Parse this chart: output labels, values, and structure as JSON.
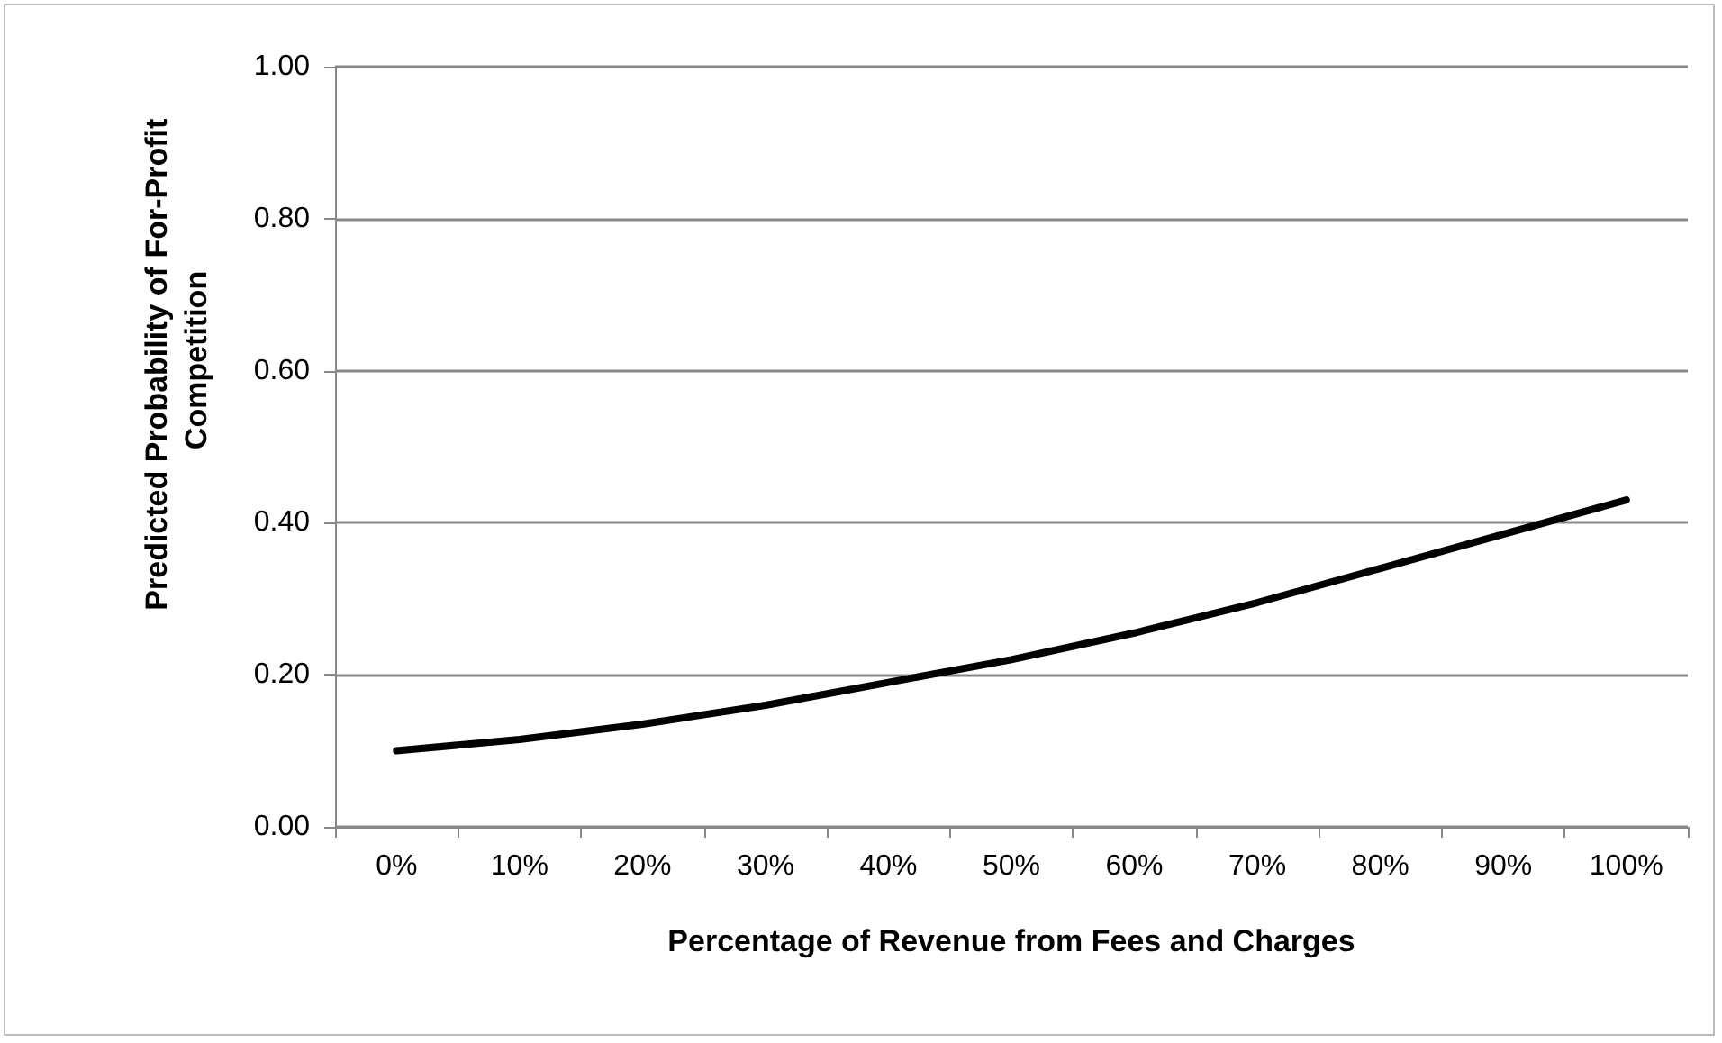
{
  "chart_data": {
    "type": "line",
    "xlabel": "Percentage of Revenue from Fees and Charges",
    "ylabel": "Predicted Probability of For-Profit Competition",
    "categories": [
      "0%",
      "10%",
      "20%",
      "30%",
      "40%",
      "50%",
      "60%",
      "70%",
      "80%",
      "90%",
      "100%"
    ],
    "series": [
      {
        "color": "#000000",
        "values": [
          0.1,
          0.115,
          0.135,
          0.16,
          0.19,
          0.22,
          0.255,
          0.295,
          0.34,
          0.385,
          0.43
        ]
      }
    ],
    "ylim": [
      0,
      1
    ],
    "yticks": [
      {
        "value": 0,
        "label": "0.00"
      },
      {
        "value": 0.2,
        "label": "0.20"
      },
      {
        "value": 0.4,
        "label": "0.40"
      },
      {
        "value": 0.6,
        "label": "0.60"
      },
      {
        "value": 0.8,
        "label": "0.80"
      },
      {
        "value": 1,
        "label": "1.00"
      }
    ],
    "grid": "y",
    "marker": "none",
    "line_style": "solid"
  }
}
